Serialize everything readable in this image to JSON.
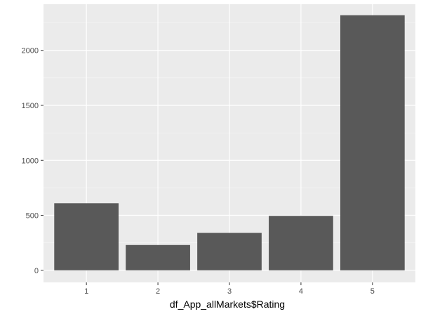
{
  "chart_data": {
    "type": "bar",
    "categories": [
      "1",
      "2",
      "3",
      "4",
      "5"
    ],
    "values": [
      610,
      230,
      340,
      495,
      2320
    ],
    "xlabel": "df_App_allMarkets$Rating",
    "ylabel": "",
    "ylim": [
      -110,
      2420
    ],
    "yticks": [
      0,
      500,
      1000,
      1500,
      2000
    ],
    "grid": true,
    "legend": "none",
    "colors": {
      "bar": "#595959",
      "panel": "#ebebeb",
      "grid_major": "#ffffff",
      "tick": "#333333"
    }
  }
}
